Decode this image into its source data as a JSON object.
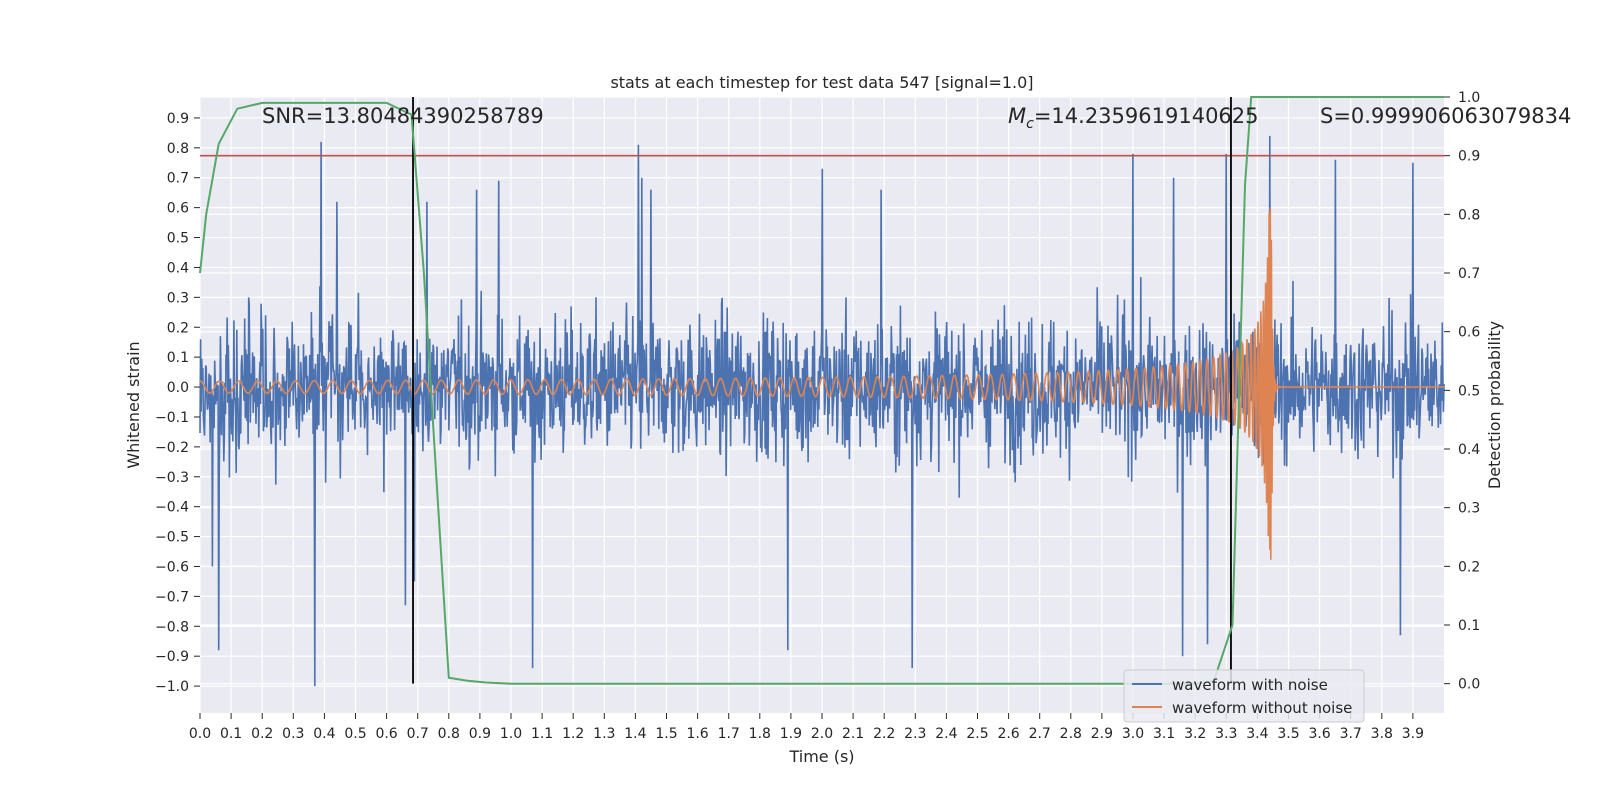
{
  "chart_data": {
    "type": "line",
    "title": "stats at each timestep for test data 547 [signal=1.0]",
    "xlabel": "Time (s)",
    "ylabel": "Whitened strain",
    "y2label": "Detection probability",
    "xlim": [
      0.0,
      4.0
    ],
    "ylim": [
      -1.09,
      0.97
    ],
    "y2lim": [
      -0.05,
      1.0
    ],
    "x_ticks": [
      0.0,
      0.1,
      0.2,
      0.3,
      0.4,
      0.5,
      0.6,
      0.7,
      0.8,
      0.9,
      1.0,
      1.1,
      1.2,
      1.3,
      1.4,
      1.5,
      1.6,
      1.7,
      1.8,
      1.9,
      2.0,
      2.1,
      2.2,
      2.3,
      2.4,
      2.5,
      2.6,
      2.7,
      2.8,
      2.9,
      3.0,
      3.1,
      3.2,
      3.3,
      3.4,
      3.5,
      3.6,
      3.7,
      3.8,
      3.9
    ],
    "y_ticks": [
      -1.0,
      -0.9,
      -0.8,
      -0.7,
      -0.6,
      -0.5,
      -0.4,
      -0.3,
      -0.2,
      -0.1,
      0.0,
      0.1,
      0.2,
      0.3,
      0.4,
      0.5,
      0.6,
      0.7,
      0.8,
      0.9
    ],
    "y2_ticks": [
      0.0,
      0.1,
      0.2,
      0.3,
      0.4,
      0.5,
      0.6,
      0.7,
      0.8,
      0.9,
      1.0
    ],
    "threshold_line": 0.9,
    "vertical_lines": [
      0.685,
      3.315
    ],
    "annotations": {
      "snr": "SNR=13.80484390258789",
      "mc_symbol": "M",
      "mc_sub": "c",
      "mc_value": "=14.2359619140625",
      "s": "S=0.999906063079834"
    },
    "legend_position": "lower-right",
    "colors": {
      "noise": "#4c72b0",
      "clean": "#dd8452",
      "probability": "#55a868",
      "threshold": "#c44e52",
      "marker": "#000000",
      "background": "#eaeaf2",
      "grid": "#ffffff"
    },
    "series": [
      {
        "name": "waveform with noise",
        "axis": "left",
        "generator": "noise",
        "amplitude_typical": 0.3,
        "peaks": [
          [
            0.04,
            -0.6
          ],
          [
            0.06,
            -0.88
          ],
          [
            0.37,
            -1.0
          ],
          [
            0.39,
            0.82
          ],
          [
            0.44,
            0.62
          ],
          [
            0.66,
            -0.73
          ],
          [
            0.69,
            -0.65
          ],
          [
            0.73,
            0.62
          ],
          [
            0.89,
            0.66
          ],
          [
            0.96,
            0.69
          ],
          [
            1.07,
            -0.94
          ],
          [
            1.41,
            0.81
          ],
          [
            1.45,
            0.66
          ],
          [
            1.42,
            0.7
          ],
          [
            1.89,
            -0.88
          ],
          [
            2.0,
            0.73
          ],
          [
            2.19,
            0.66
          ],
          [
            2.29,
            -0.94
          ],
          [
            3.0,
            0.78
          ],
          [
            3.13,
            0.7
          ],
          [
            3.16,
            -0.9
          ],
          [
            3.24,
            -0.86
          ],
          [
            3.3,
            0.78
          ],
          [
            3.44,
            0.84
          ],
          [
            3.65,
            0.76
          ],
          [
            3.86,
            -0.83
          ],
          [
            3.9,
            0.75
          ]
        ]
      },
      {
        "name": "waveform without noise",
        "axis": "left",
        "generator": "chirp",
        "merger_time": 3.445,
        "peak_amplitude": 0.6,
        "min_amplitude": -0.59
      },
      {
        "name": "detection probability",
        "axis": "right",
        "x": [
          0.0,
          0.02,
          0.06,
          0.12,
          0.2,
          0.3,
          0.4,
          0.5,
          0.6,
          0.68,
          0.72,
          0.76,
          0.8,
          0.86,
          0.92,
          1.0,
          1.5,
          2.0,
          2.5,
          3.0,
          3.2,
          3.26,
          3.32,
          3.36,
          3.38,
          3.42,
          3.5,
          3.7,
          4.0
        ],
        "values": [
          0.7,
          0.8,
          0.92,
          0.98,
          0.99,
          0.99,
          0.99,
          0.99,
          0.99,
          0.97,
          0.7,
          0.35,
          0.01,
          0.005,
          0.002,
          0.0,
          0.0,
          0.0,
          0.0,
          0.0,
          0.0,
          0.005,
          0.1,
          0.85,
          1.0,
          1.0,
          1.0,
          1.0,
          1.0
        ]
      }
    ]
  }
}
